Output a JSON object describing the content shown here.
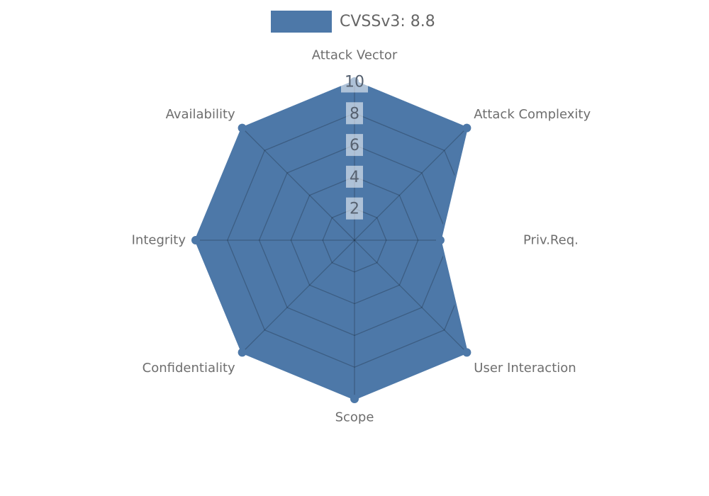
{
  "legend": {
    "label": "CVSSv3: 8.8"
  },
  "chart_data": {
    "type": "radar",
    "title": "CVSSv3: 8.8",
    "categories": [
      "Attack Vector",
      "Attack Complexity",
      "Priv.Req.",
      "User Interaction",
      "Scope",
      "Confidentiality",
      "Integrity",
      "Availability"
    ],
    "series": [
      {
        "name": "CVSSv3: 8.8",
        "values": [
          10,
          10,
          5.4,
          10,
          10,
          10,
          10,
          10
        ]
      }
    ],
    "radial_ticks": [
      2,
      4,
      6,
      8,
      10
    ],
    "rlim": [
      0,
      10
    ],
    "grid": true,
    "legend_position": "top-center",
    "axes_start": "top-clockwise",
    "colors": {
      "fill": "#4d78a8",
      "stroke": "#4d78a8",
      "marker": "#4d78a8",
      "grid": "rgba(0,0,0,0.22)",
      "axis_label": "#6e6e6e",
      "tick_label": "#566170",
      "tick_box": "rgba(255,255,255,0.55)",
      "legend_text": "#666666"
    }
  }
}
